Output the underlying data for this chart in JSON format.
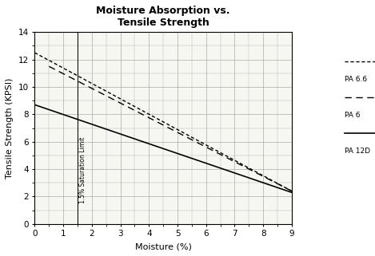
{
  "title": "Moisture Absorption vs.\nTensile Strength",
  "xlabel": "Moisture (%)",
  "ylabel": "Tensile Strength (KPSI)",
  "xlim": [
    0,
    9
  ],
  "ylim": [
    0,
    14
  ],
  "xticks": [
    0,
    1,
    2,
    3,
    4,
    5,
    6,
    7,
    8,
    9
  ],
  "yticks": [
    0,
    2,
    4,
    6,
    8,
    10,
    12,
    14
  ],
  "background_color": "#ffffff",
  "plot_bg_color": "#f7f7f2",
  "grid_color": "#aaaaaa",
  "saturation_limit_x": 1.5,
  "saturation_label": "1.5% Saturation Limit",
  "series": [
    {
      "label": "PA 6.6",
      "x": [
        0.0,
        9.0
      ],
      "y": [
        12.5,
        2.4
      ],
      "color": "#000000",
      "linewidth": 1.0,
      "dashes": [
        3,
        2
      ]
    },
    {
      "label": "PA 6",
      "x": [
        0.5,
        9.0
      ],
      "y": [
        11.5,
        2.4
      ],
      "color": "#000000",
      "linewidth": 1.0,
      "dashes": [
        6,
        4
      ]
    },
    {
      "label": "PA 12D",
      "x": [
        0.0,
        9.0
      ],
      "y": [
        8.7,
        2.3
      ],
      "color": "#000000",
      "linewidth": 1.2,
      "dashes": []
    }
  ],
  "legend_entries": [
    {
      "label": "PA 6.6",
      "dashes": [
        3,
        2
      ]
    },
    {
      "label": "PA 6",
      "dashes": [
        6,
        4
      ]
    },
    {
      "label": "PA 12D",
      "dashes": []
    }
  ]
}
